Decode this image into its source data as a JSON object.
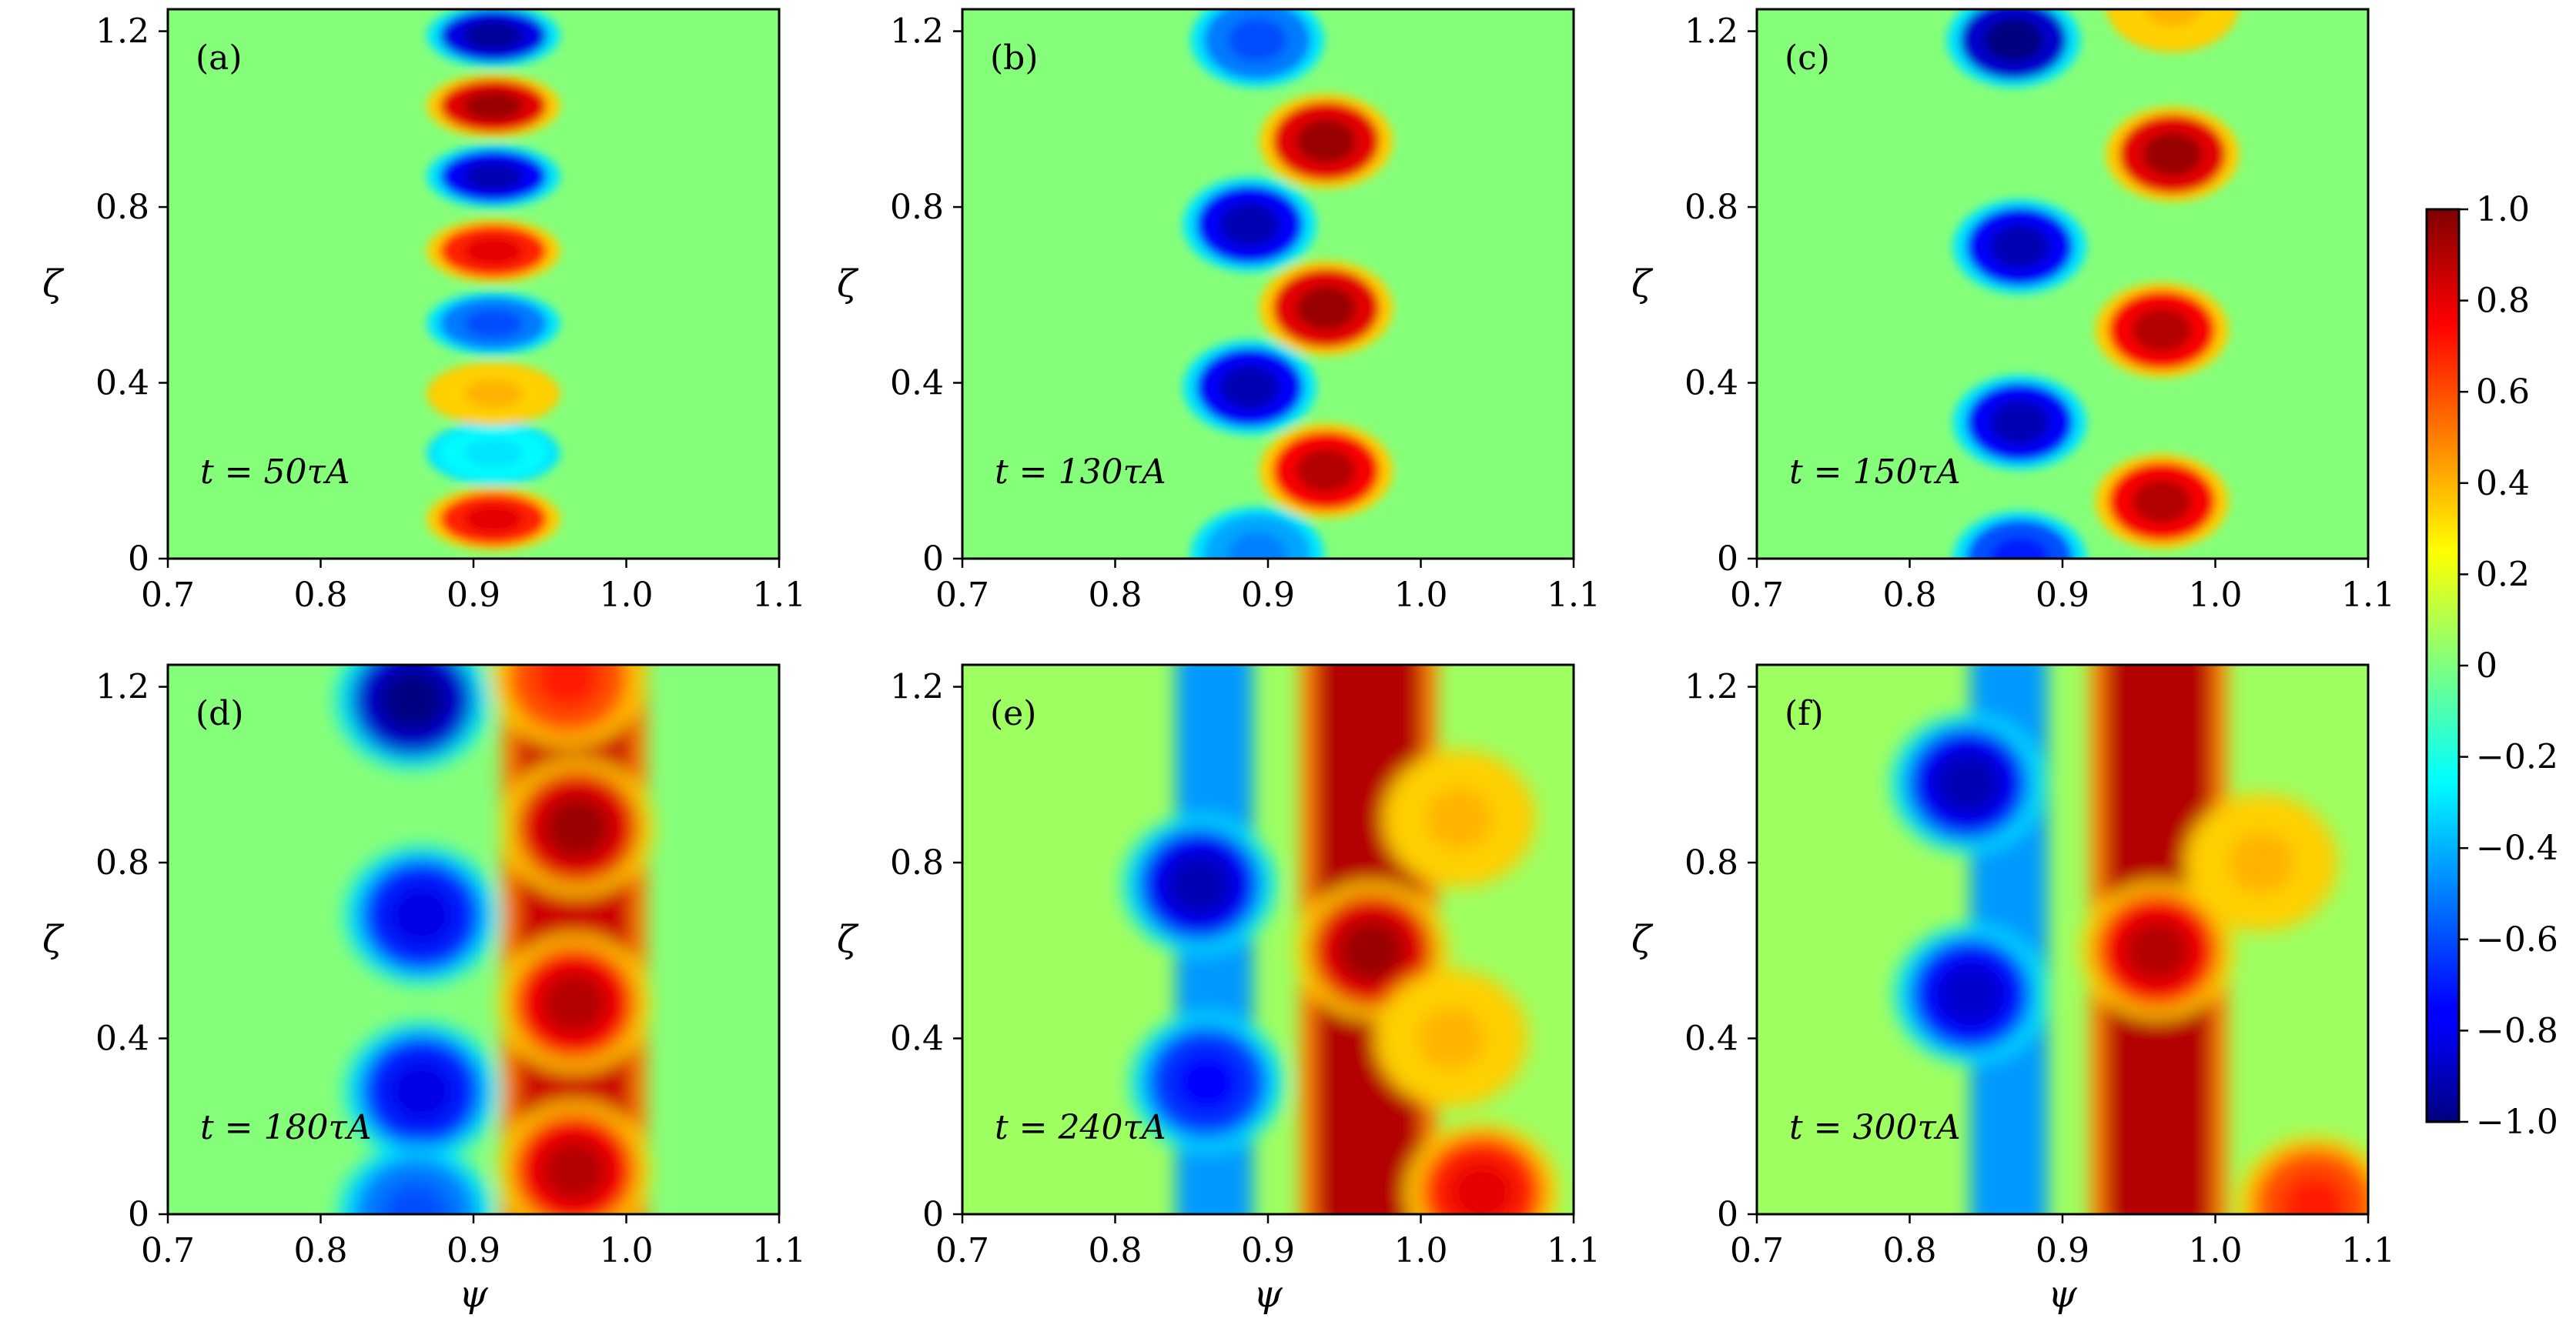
{
  "figure": {
    "colormap": "jet",
    "colorbar": {
      "range": [
        -1.0,
        1.0
      ],
      "ticks": [
        "1.0",
        "0.8",
        "0.6",
        "0.4",
        "0.2",
        "0",
        "−0.2",
        "−0.4",
        "−0.6",
        "−0.8",
        "−1.0"
      ]
    }
  },
  "chart_data": [
    {
      "type": "heatmap",
      "panel_label": "(a)",
      "time_label": "t = 50τA",
      "time_value": 50,
      "xlabel": "",
      "ylabel": "ζ",
      "xlim": [
        0.7,
        1.1
      ],
      "ylim": [
        0,
        1.25
      ],
      "xticks": [
        "0.7",
        "0.8",
        "0.9",
        "1.0",
        "1.1"
      ],
      "yticks": [
        "0",
        "0.4",
        "0.8",
        "1.2"
      ],
      "structures": [
        {
          "x": 0.913,
          "y": 0.09,
          "value": 0.8
        },
        {
          "x": 0.913,
          "y": 0.24,
          "value": -0.3
        },
        {
          "x": 0.913,
          "y": 0.375,
          "value": 0.4
        },
        {
          "x": 0.913,
          "y": 0.535,
          "value": -0.6
        },
        {
          "x": 0.913,
          "y": 0.7,
          "value": 0.8
        },
        {
          "x": 0.913,
          "y": 0.87,
          "value": -0.9
        },
        {
          "x": 0.913,
          "y": 1.03,
          "value": 0.95
        },
        {
          "x": 0.913,
          "y": 1.19,
          "value": -0.95
        }
      ]
    },
    {
      "type": "heatmap",
      "panel_label": "(b)",
      "time_label": "t = 130τA",
      "time_value": 130,
      "xlabel": "",
      "ylabel": "ζ",
      "xlim": [
        0.7,
        1.1
      ],
      "ylim": [
        0,
        1.25
      ],
      "xticks": [
        "0.7",
        "0.8",
        "0.9",
        "1.0",
        "1.1"
      ],
      "yticks": [
        "0",
        "0.4",
        "0.8",
        "1.2"
      ],
      "structures": [
        {
          "x": 0.938,
          "y": 0.2,
          "value": 0.9
        },
        {
          "x": 0.888,
          "y": 0.39,
          "value": -0.9
        },
        {
          "x": 0.938,
          "y": 0.57,
          "value": 0.95
        },
        {
          "x": 0.888,
          "y": 0.76,
          "value": -0.9
        },
        {
          "x": 0.938,
          "y": 0.95,
          "value": 0.95
        },
        {
          "x": 0.893,
          "y": 1.18,
          "value": -0.6
        },
        {
          "x": 0.893,
          "y": 0.01,
          "value": -0.5
        }
      ]
    },
    {
      "type": "heatmap",
      "panel_label": "(c)",
      "time_label": "t = 150τA",
      "time_value": 150,
      "xlabel": "",
      "ylabel": "ζ",
      "xlim": [
        0.7,
        1.1
      ],
      "ylim": [
        0,
        1.25
      ],
      "xticks": [
        "0.7",
        "0.8",
        "0.9",
        "1.0",
        "1.1"
      ],
      "yticks": [
        "0",
        "0.4",
        "0.8",
        "1.2"
      ],
      "structures": [
        {
          "x": 0.965,
          "y": 0.13,
          "value": 0.9
        },
        {
          "x": 0.872,
          "y": 0.31,
          "value": -0.9
        },
        {
          "x": 0.965,
          "y": 0.52,
          "value": 0.9
        },
        {
          "x": 0.872,
          "y": 0.71,
          "value": -0.9
        },
        {
          "x": 0.972,
          "y": 0.92,
          "value": 0.95
        },
        {
          "x": 0.868,
          "y": 1.18,
          "value": -1.0
        },
        {
          "x": 0.972,
          "y": 1.26,
          "value": 0.4
        },
        {
          "x": 0.872,
          "y": 0.0,
          "value": -0.7
        }
      ]
    },
    {
      "type": "heatmap",
      "panel_label": "(d)",
      "time_label": "t = 180τA",
      "time_value": 180,
      "xlabel": "",
      "ylabel": "ζ",
      "xlim": [
        0.7,
        1.1
      ],
      "ylim": [
        0,
        1.25
      ],
      "xticks": [
        "0.7",
        "0.8",
        "0.9",
        "1.0",
        "1.1"
      ],
      "yticks": [
        "0",
        "0.4",
        "0.8",
        "1.2"
      ],
      "structures": [
        {
          "x": 0.966,
          "y": 0.1,
          "value": 0.9
        },
        {
          "x": 0.866,
          "y": 0.28,
          "value": -0.8
        },
        {
          "x": 0.966,
          "y": 0.48,
          "value": 0.9
        },
        {
          "x": 0.866,
          "y": 0.68,
          "value": -0.8
        },
        {
          "x": 0.968,
          "y": 0.88,
          "value": 0.95
        },
        {
          "x": 0.86,
          "y": 1.17,
          "value": -1.0
        },
        {
          "x": 0.962,
          "y": 1.22,
          "value": 0.7
        },
        {
          "x": 0.862,
          "y": 0.0,
          "value": -0.6
        }
      ]
    },
    {
      "type": "heatmap",
      "panel_label": "(e)",
      "time_label": "t = 240τA",
      "time_value": 240,
      "xlabel": "",
      "ylabel": "ζ",
      "xlim": [
        0.7,
        1.1
      ],
      "ylim": [
        0,
        1.25
      ],
      "xticks": [
        "0.7",
        "0.8",
        "0.9",
        "1.0",
        "1.1"
      ],
      "yticks": [
        "0",
        "0.4",
        "0.8",
        "1.2"
      ],
      "structures": [
        {
          "x": 0.968,
          "y": 0.6,
          "value": 0.95
        },
        {
          "x": 0.855,
          "y": 0.75,
          "value": -0.9
        },
        {
          "x": 0.86,
          "y": 0.3,
          "value": -0.75
        },
        {
          "x": 1.04,
          "y": 0.05,
          "value": 0.8
        },
        {
          "x": 1.02,
          "y": 0.4,
          "value": 0.4
        },
        {
          "x": 1.025,
          "y": 0.9,
          "value": 0.4
        }
      ]
    },
    {
      "type": "heatmap",
      "panel_label": "(f)",
      "time_label": "t = 300τA",
      "time_value": 300,
      "xlabel": "ψ",
      "ylabel": "ζ",
      "xlim": [
        0.7,
        1.1
      ],
      "ylim": [
        0,
        1.25
      ],
      "xticks": [
        "0.7",
        "0.8",
        "0.9",
        "1.0",
        "1.1"
      ],
      "yticks": [
        "0",
        "0.4",
        "0.8",
        "1.2"
      ],
      "structures": [
        {
          "x": 0.962,
          "y": 0.6,
          "value": 0.9
        },
        {
          "x": 0.838,
          "y": 0.98,
          "value": -0.9
        },
        {
          "x": 0.84,
          "y": 0.5,
          "value": -0.85
        },
        {
          "x": 1.065,
          "y": 0.02,
          "value": 0.7
        },
        {
          "x": 1.03,
          "y": 0.8,
          "value": 0.4
        }
      ]
    }
  ]
}
